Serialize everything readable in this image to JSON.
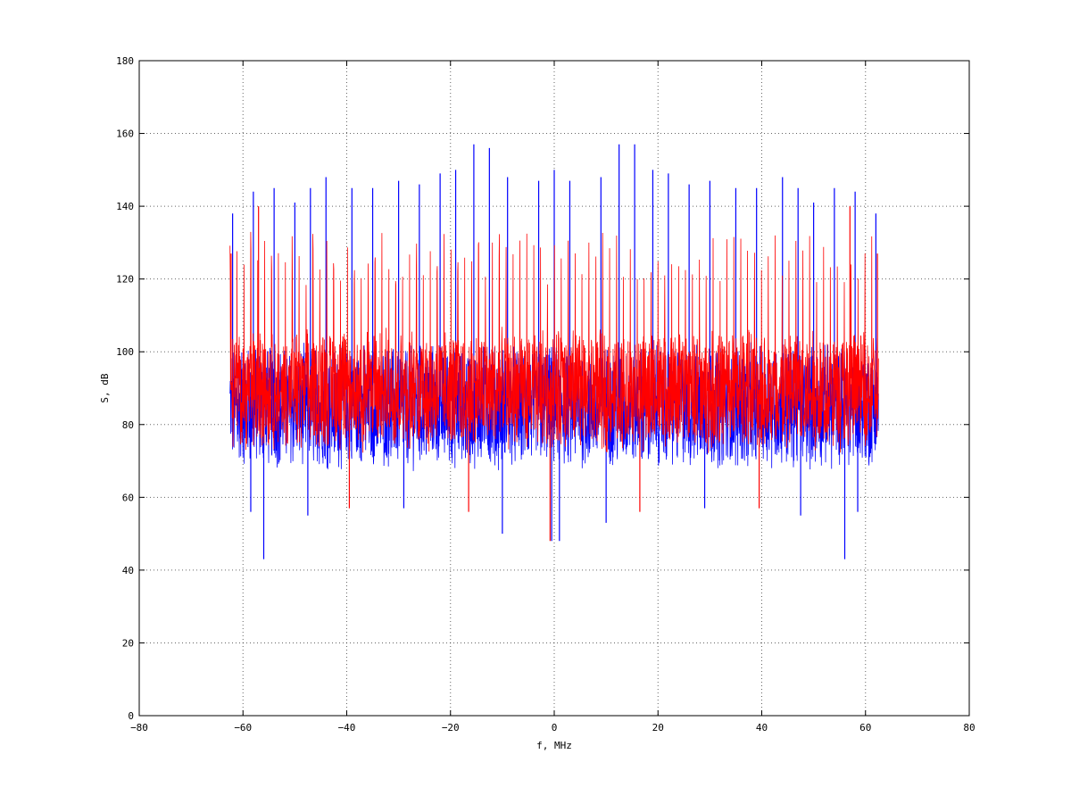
{
  "chart_data": {
    "type": "line",
    "title": "",
    "xlabel": "f, MHz",
    "ylabel": "S, dB",
    "xlim": [
      -80,
      80
    ],
    "ylim": [
      0,
      180
    ],
    "xticks": [
      -80,
      -60,
      -40,
      -20,
      0,
      20,
      40,
      60,
      80
    ],
    "yticks": [
      0,
      20,
      40,
      60,
      80,
      100,
      120,
      140,
      160,
      180
    ],
    "xtick_labels": [
      "−80",
      "−60",
      "−40",
      "−20",
      "0",
      "20",
      "40",
      "60",
      "80"
    ],
    "ytick_labels": [
      "0",
      "20",
      "40",
      "60",
      "80",
      "100",
      "120",
      "140",
      "160",
      "180"
    ],
    "grid": true,
    "legend": "none",
    "series": [
      {
        "color": "#0000ff",
        "x_range": [
          -62.5,
          62.5
        ],
        "noise_band": [
          70,
          100
        ],
        "spikes": [
          {
            "x": -62,
            "y": 138
          },
          {
            "x": -58,
            "y": 144
          },
          {
            "x": -56,
            "y": 43
          },
          {
            "x": -54,
            "y": 145
          },
          {
            "x": -50,
            "y": 141
          },
          {
            "x": -47,
            "y": 145
          },
          {
            "x": -44,
            "y": 148
          },
          {
            "x": -39,
            "y": 145
          },
          {
            "x": -35,
            "y": 145
          },
          {
            "x": -30,
            "y": 147
          },
          {
            "x": -26,
            "y": 146
          },
          {
            "x": -22,
            "y": 149
          },
          {
            "x": -19,
            "y": 150
          },
          {
            "x": -15.5,
            "y": 157
          },
          {
            "x": -12.5,
            "y": 156
          },
          {
            "x": -9,
            "y": 148
          },
          {
            "x": -3,
            "y": 147
          },
          {
            "x": 0,
            "y": 150
          },
          {
            "x": 3,
            "y": 147
          },
          {
            "x": 9,
            "y": 148
          },
          {
            "x": 12.5,
            "y": 157
          },
          {
            "x": 15.5,
            "y": 157
          },
          {
            "x": 19,
            "y": 150
          },
          {
            "x": 22,
            "y": 149
          },
          {
            "x": 26,
            "y": 146
          },
          {
            "x": 30,
            "y": 147
          },
          {
            "x": 35,
            "y": 145
          },
          {
            "x": 39,
            "y": 145
          },
          {
            "x": 44,
            "y": 148
          },
          {
            "x": 47,
            "y": 145
          },
          {
            "x": 50,
            "y": 141
          },
          {
            "x": 54,
            "y": 145
          },
          {
            "x": 56,
            "y": 43
          },
          {
            "x": 58,
            "y": 144
          },
          {
            "x": 62,
            "y": 138
          }
        ],
        "dips": [
          {
            "x": -58.5,
            "y": 56
          },
          {
            "x": -47.5,
            "y": 55
          },
          {
            "x": -29,
            "y": 57
          },
          {
            "x": -10,
            "y": 50
          },
          {
            "x": -0.5,
            "y": 48
          },
          {
            "x": 1,
            "y": 48
          },
          {
            "x": 10,
            "y": 53
          },
          {
            "x": 29,
            "y": 57
          },
          {
            "x": 47.5,
            "y": 55
          },
          {
            "x": 58.5,
            "y": 56
          }
        ]
      },
      {
        "color": "#ff0000",
        "x_range": [
          -62.5,
          62.5
        ],
        "noise_band": [
          75,
          104
        ],
        "comb_spacing": 1.33,
        "comb_peak": [
          118,
          133
        ],
        "spikes": [
          {
            "x": -62.3,
            "y": 127
          },
          {
            "x": -57,
            "y": 140
          },
          {
            "x": 57,
            "y": 140
          },
          {
            "x": 62.3,
            "y": 127
          }
        ],
        "dips": [
          {
            "x": -39.5,
            "y": 57
          },
          {
            "x": -16.5,
            "y": 56
          },
          {
            "x": -0.8,
            "y": 48
          },
          {
            "x": 16.5,
            "y": 56
          },
          {
            "x": 39.5,
            "y": 57
          }
        ]
      }
    ]
  }
}
